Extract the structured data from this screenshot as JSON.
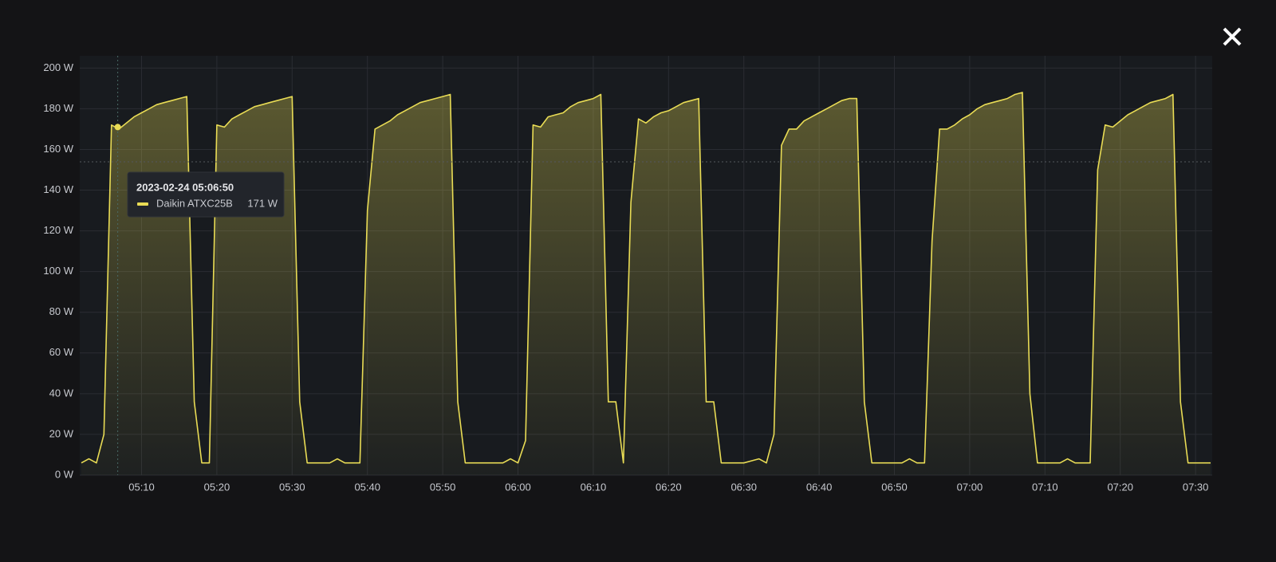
{
  "chart_data": {
    "type": "area",
    "series": [
      {
        "name": "Daikin ATXC25B",
        "color": "#e9dc55",
        "values": [
          6,
          8,
          6,
          20,
          172,
          170,
          173,
          176,
          178,
          180,
          182,
          183,
          184,
          185,
          186,
          36,
          6,
          6,
          172,
          171,
          175,
          177,
          179,
          181,
          182,
          183,
          184,
          185,
          186,
          36,
          6,
          6,
          6,
          6,
          8,
          6,
          6,
          6,
          130,
          170,
          172,
          174,
          177,
          179,
          181,
          183,
          184,
          185,
          186,
          187,
          36,
          6,
          6,
          6,
          6,
          6,
          6,
          8,
          6,
          17,
          172,
          171,
          176,
          177,
          178,
          181,
          183,
          184,
          185,
          187,
          36,
          36,
          6,
          134,
          175,
          173,
          176,
          178,
          179,
          181,
          183,
          184,
          185,
          36,
          36,
          6,
          6,
          6,
          6,
          7,
          8,
          6,
          20,
          162,
          170,
          170,
          174,
          176,
          178,
          180,
          182,
          184,
          185,
          185,
          36,
          6,
          6,
          6,
          6,
          6,
          8,
          6,
          6,
          115,
          170,
          170,
          172,
          175,
          177,
          180,
          182,
          183,
          184,
          185,
          187,
          188,
          40,
          6,
          6,
          6,
          6,
          8,
          6,
          6,
          6,
          150,
          172,
          171,
          174,
          177,
          179,
          181,
          183,
          184,
          185,
          187,
          36,
          6,
          6,
          6,
          6
        ]
      }
    ],
    "x": [
      "05:02",
      "05:03",
      "05:04",
      "05:05",
      "05:06",
      "05:07",
      "05:08",
      "05:09",
      "05:10",
      "05:11",
      "05:12",
      "05:13",
      "05:14",
      "05:15",
      "05:16",
      "05:17",
      "05:18",
      "05:19",
      "05:20",
      "05:21",
      "05:22",
      "05:23",
      "05:24",
      "05:25",
      "05:26",
      "05:27",
      "05:28",
      "05:29",
      "05:30",
      "05:31",
      "05:32",
      "05:33",
      "05:34",
      "05:35",
      "05:36",
      "05:37",
      "05:38",
      "05:39",
      "05:40",
      "05:41",
      "05:42",
      "05:43",
      "05:44",
      "05:45",
      "05:46",
      "05:47",
      "05:48",
      "05:49",
      "05:50",
      "05:51",
      "05:52",
      "05:53",
      "05:54",
      "05:55",
      "05:56",
      "05:57",
      "05:58",
      "05:59",
      "06:00",
      "06:01",
      "06:02",
      "06:03",
      "06:04",
      "06:05",
      "06:06",
      "06:07",
      "06:08",
      "06:09",
      "06:10",
      "06:11",
      "06:12",
      "06:13",
      "06:14",
      "06:15",
      "06:16",
      "06:17",
      "06:18",
      "06:19",
      "06:20",
      "06:21",
      "06:22",
      "06:23",
      "06:24",
      "06:25",
      "06:26",
      "06:27",
      "06:28",
      "06:29",
      "06:30",
      "06:31",
      "06:32",
      "06:33",
      "06:34",
      "06:35",
      "06:36",
      "06:37",
      "06:38",
      "06:39",
      "06:40",
      "06:41",
      "06:42",
      "06:43",
      "06:44",
      "06:45",
      "06:46",
      "06:47",
      "06:48",
      "06:49",
      "06:50",
      "06:51",
      "06:52",
      "06:53",
      "06:54",
      "06:55",
      "06:56",
      "06:57",
      "06:58",
      "06:59",
      "07:00",
      "07:01",
      "07:02",
      "07:03",
      "07:04",
      "07:05",
      "07:06",
      "07:07",
      "07:08",
      "07:09",
      "07:10",
      "07:11",
      "07:12",
      "07:13",
      "07:14",
      "07:15",
      "07:16",
      "07:17",
      "07:18",
      "07:19",
      "07:20",
      "07:21",
      "07:22",
      "07:23",
      "07:24",
      "07:25",
      "07:26",
      "07:27",
      "07:28",
      "07:29",
      "07:30",
      "07:31",
      "07:32"
    ],
    "xlim": [
      "05:02",
      "07:32"
    ],
    "xticks": [
      "05:10",
      "05:20",
      "05:30",
      "05:40",
      "05:50",
      "06:00",
      "06:10",
      "06:20",
      "06:30",
      "06:40",
      "06:50",
      "07:00",
      "07:10",
      "07:20",
      "07:30"
    ],
    "ylim": [
      0,
      206
    ],
    "yticks": [
      {
        "value": 0,
        "label": "0 W"
      },
      {
        "value": 20,
        "label": "20 W"
      },
      {
        "value": 40,
        "label": "40 W"
      },
      {
        "value": 60,
        "label": "60 W"
      },
      {
        "value": 80,
        "label": "80 W"
      },
      {
        "value": 100,
        "label": "100 W"
      },
      {
        "value": 120,
        "label": "120 W"
      },
      {
        "value": 140,
        "label": "140 W"
      },
      {
        "value": 160,
        "label": "160 W"
      },
      {
        "value": 180,
        "label": "180 W"
      },
      {
        "value": 200,
        "label": "200 W"
      }
    ],
    "grid": true,
    "tooltip": {
      "time": "2023-02-24 05:06:50",
      "value": 171,
      "value_label": "171 W"
    }
  }
}
